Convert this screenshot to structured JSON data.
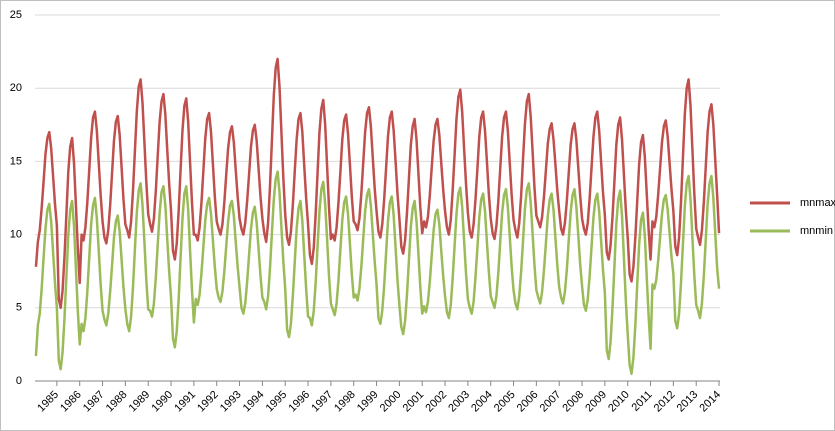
{
  "chart_data": {
    "type": "line",
    "categories": [
      null,
      null,
      null,
      null,
      null,
      null,
      null,
      null,
      null,
      null,
      null,
      "1985",
      null,
      null,
      null,
      null,
      null,
      null,
      null,
      null,
      null,
      null,
      null,
      "1986",
      null,
      null,
      null,
      null,
      null,
      null,
      null,
      null,
      null,
      null,
      null,
      "1987",
      null,
      null,
      null,
      null,
      null,
      null,
      null,
      null,
      null,
      null,
      null,
      "1988",
      null,
      null,
      null,
      null,
      null,
      null,
      null,
      null,
      null,
      null,
      null,
      "1989",
      null,
      null,
      null,
      null,
      null,
      null,
      null,
      null,
      null,
      null,
      null,
      "1990",
      null,
      null,
      null,
      null,
      null,
      null,
      null,
      null,
      null,
      null,
      null,
      "1991",
      null,
      null,
      null,
      null,
      null,
      null,
      null,
      null,
      null,
      null,
      null,
      "1992",
      null,
      null,
      null,
      null,
      null,
      null,
      null,
      null,
      null,
      null,
      null,
      "1993",
      null,
      null,
      null,
      null,
      null,
      null,
      null,
      null,
      null,
      null,
      null,
      "1994",
      null,
      null,
      null,
      null,
      null,
      null,
      null,
      null,
      null,
      null,
      null,
      "1995",
      null,
      null,
      null,
      null,
      null,
      null,
      null,
      null,
      null,
      null,
      null,
      "1996",
      null,
      null,
      null,
      null,
      null,
      null,
      null,
      null,
      null,
      null,
      null,
      "1997",
      null,
      null,
      null,
      null,
      null,
      null,
      null,
      null,
      null,
      null,
      null,
      "1998",
      null,
      null,
      null,
      null,
      null,
      null,
      null,
      null,
      null,
      null,
      null,
      "1999",
      null,
      null,
      null,
      null,
      null,
      null,
      null,
      null,
      null,
      null,
      null,
      "2000",
      null,
      null,
      null,
      null,
      null,
      null,
      null,
      null,
      null,
      null,
      null,
      "2001",
      null,
      null,
      null,
      null,
      null,
      null,
      null,
      null,
      null,
      null,
      null,
      "2002",
      null,
      null,
      null,
      null,
      null,
      null,
      null,
      null,
      null,
      null,
      null,
      "2003",
      null,
      null,
      null,
      null,
      null,
      null,
      null,
      null,
      null,
      null,
      null,
      "2004",
      null,
      null,
      null,
      null,
      null,
      null,
      null,
      null,
      null,
      null,
      null,
      "2005",
      null,
      null,
      null,
      null,
      null,
      null,
      null,
      null,
      null,
      null,
      null,
      "2006",
      null,
      null,
      null,
      null,
      null,
      null,
      null,
      null,
      null,
      null,
      null,
      "2007",
      null,
      null,
      null,
      null,
      null,
      null,
      null,
      null,
      null,
      null,
      null,
      "2008",
      null,
      null,
      null,
      null,
      null,
      null,
      null,
      null,
      null,
      null,
      null,
      "2009",
      null,
      null,
      null,
      null,
      null,
      null,
      null,
      null,
      null,
      null,
      null,
      "2010",
      null,
      null,
      null,
      null,
      null,
      null,
      null,
      null,
      null,
      null,
      null,
      "2011",
      null,
      null,
      null,
      null,
      null,
      null,
      null,
      null,
      null,
      null,
      null,
      "2012",
      null,
      null,
      null,
      null,
      null,
      null,
      null,
      null,
      null,
      null,
      null,
      "2013",
      null,
      null,
      null,
      null,
      null,
      null,
      null,
      null,
      null,
      null,
      null,
      "2014"
    ],
    "series": [
      {
        "name": "mnmax",
        "color": "#c0504d",
        "values": [
          7.8,
          9.5,
          10.3,
          11.8,
          13.6,
          15.5,
          16.6,
          17.0,
          15.9,
          14.0,
          12.1,
          10.6,
          5.6,
          5.0,
          6.2,
          8.5,
          11.4,
          14.3,
          16.0,
          16.6,
          14.9,
          12.0,
          9.1,
          6.7,
          10.0,
          9.6,
          10.5,
          12.2,
          14.4,
          16.6,
          18.0,
          18.4,
          17.1,
          14.9,
          12.7,
          10.9,
          9.8,
          9.4,
          10.3,
          12.0,
          14.2,
          16.4,
          17.7,
          18.1,
          16.8,
          14.6,
          12.4,
          10.7,
          10.3,
          9.8,
          10.9,
          13.0,
          15.7,
          18.4,
          20.1,
          20.6,
          19.0,
          16.3,
          13.6,
          11.4,
          10.7,
          10.2,
          11.1,
          13.0,
          15.4,
          17.7,
          19.1,
          19.6,
          18.2,
          15.8,
          13.5,
          11.6,
          8.9,
          8.3,
          9.4,
          11.6,
          14.4,
          17.1,
          18.8,
          19.3,
          17.7,
          14.9,
          12.2,
          10.0,
          10.0,
          9.6,
          10.5,
          12.2,
          14.4,
          16.6,
          17.9,
          18.3,
          17.0,
          14.8,
          12.6,
          10.9,
          10.4,
          10.0,
          10.7,
          12.2,
          14.1,
          15.9,
          17.0,
          17.4,
          16.3,
          14.4,
          12.6,
          11.1,
          10.4,
          10.0,
          10.8,
          12.3,
          14.1,
          16.0,
          17.1,
          17.5,
          16.4,
          14.5,
          12.6,
          11.1,
          10.1,
          9.5,
          10.8,
          13.3,
          16.4,
          19.5,
          21.4,
          22.0,
          20.1,
          17.0,
          13.9,
          11.4,
          9.8,
          9.3,
          10.2,
          12.0,
          14.3,
          16.5,
          17.9,
          18.3,
          17.0,
          14.7,
          12.5,
          10.7,
          8.6,
          8.0,
          9.1,
          11.4,
          14.2,
          17.0,
          18.6,
          19.2,
          17.5,
          14.7,
          11.9,
          9.7,
          10.0,
          9.6,
          10.5,
          12.2,
          14.3,
          16.5,
          17.8,
          18.2,
          16.9,
          14.8,
          12.6,
          10.9,
          10.7,
          10.3,
          11.1,
          12.8,
          14.9,
          17.0,
          18.3,
          18.7,
          17.4,
          15.3,
          13.2,
          11.6,
          10.2,
          9.8,
          10.7,
          12.4,
          14.5,
          16.7,
          18.0,
          18.4,
          17.1,
          15.0,
          12.8,
          11.1,
          9.2,
          8.7,
          9.6,
          11.5,
          13.8,
          16.1,
          17.4,
          17.9,
          16.5,
          14.2,
          11.9,
          10.1,
          10.9,
          10.5,
          11.2,
          12.7,
          14.6,
          16.4,
          17.5,
          17.9,
          16.8,
          14.9,
          13.1,
          11.6,
          10.5,
          10.0,
          11.0,
          13.0,
          15.4,
          17.9,
          19.4,
          19.9,
          18.4,
          15.9,
          13.5,
          11.5,
          10.2,
          9.8,
          10.7,
          12.4,
          14.5,
          16.7,
          18.0,
          18.4,
          17.1,
          15.0,
          12.8,
          11.1,
          10.1,
          9.7,
          10.6,
          12.3,
          14.5,
          16.7,
          18.0,
          18.4,
          17.1,
          14.9,
          12.7,
          11.0,
          10.3,
          9.8,
          10.8,
          12.7,
          15.2,
          17.6,
          19.1,
          19.6,
          18.1,
          15.7,
          13.2,
          11.3,
          10.9,
          10.5,
          11.2,
          12.6,
          14.4,
          16.2,
          17.2,
          17.6,
          16.5,
          14.8,
          13.0,
          11.6,
          10.4,
          10.0,
          10.8,
          12.3,
          14.2,
          16.1,
          17.2,
          17.6,
          16.5,
          14.6,
          12.7,
          11.1,
          10.4,
          10.0,
          10.8,
          12.5,
          14.6,
          16.7,
          18.0,
          18.4,
          17.1,
          15.0,
          12.9,
          11.3,
          8.8,
          8.3,
          9.3,
          11.2,
          13.6,
          16.1,
          17.5,
          18.0,
          16.5,
          14.1,
          11.7,
          9.8,
          7.3,
          6.8,
          7.8,
          9.8,
          12.3,
          14.8,
          16.3,
          16.8,
          15.3,
          12.8,
          10.3,
          8.3,
          10.9,
          10.5,
          11.2,
          12.7,
          14.5,
          16.3,
          17.4,
          17.8,
          16.7,
          14.9,
          13.1,
          11.6,
          9.2,
          8.6,
          9.8,
          12.2,
          15.2,
          18.2,
          20.0,
          20.6,
          18.8,
          15.8,
          12.8,
          10.4,
          9.8,
          9.3,
          10.3,
          12.2,
          14.6,
          17.0,
          18.4,
          18.9,
          17.5,
          15.1,
          12.7,
          10.1
        ]
      },
      {
        "name": "mnmin",
        "color": "#9bbb59",
        "values": [
          1.7,
          3.8,
          4.6,
          6.3,
          8.4,
          10.4,
          11.7,
          12.1,
          10.9,
          8.8,
          6.7,
          5.0,
          1.4,
          0.8,
          2.0,
          4.3,
          7.1,
          10.0,
          11.7,
          12.3,
          10.6,
          7.7,
          4.8,
          2.5,
          3.9,
          3.4,
          4.3,
          6.1,
          8.4,
          10.7,
          12.0,
          12.5,
          11.1,
          8.9,
          6.6,
          4.8,
          4.2,
          3.8,
          4.6,
          6.1,
          7.9,
          9.8,
          10.9,
          11.3,
          10.2,
          8.3,
          6.4,
          4.9,
          3.9,
          3.4,
          4.4,
          6.4,
          9.0,
          11.5,
          13.0,
          13.5,
          12.0,
          9.5,
          6.9,
          4.9,
          4.8,
          4.4,
          5.3,
          7.1,
          9.3,
          11.5,
          12.9,
          13.3,
          12.0,
          9.7,
          7.5,
          5.7,
          2.9,
          2.3,
          3.4,
          5.6,
          8.4,
          11.1,
          12.8,
          13.3,
          11.7,
          8.9,
          6.2,
          4.0,
          5.6,
          5.2,
          5.9,
          7.4,
          9.2,
          11.0,
          12.1,
          12.5,
          11.4,
          9.6,
          7.8,
          6.3,
          5.7,
          5.4,
          6.1,
          7.5,
          9.2,
          10.9,
          12.0,
          12.3,
          11.3,
          9.5,
          7.8,
          6.4,
          5.0,
          4.6,
          5.3,
          6.8,
          8.6,
          10.4,
          11.5,
          11.9,
          10.8,
          9.0,
          7.2,
          5.7,
          5.4,
          4.9,
          5.8,
          7.7,
          10.1,
          12.4,
          13.8,
          14.3,
          12.9,
          10.5,
          8.2,
          6.3,
          3.5,
          3.0,
          3.9,
          5.8,
          8.1,
          10.4,
          11.8,
          12.3,
          10.9,
          8.6,
          6.3,
          4.4,
          4.3,
          3.8,
          4.8,
          6.7,
          9.2,
          11.6,
          13.1,
          13.6,
          12.1,
          9.7,
          7.2,
          5.3,
          4.9,
          4.5,
          5.3,
          6.9,
          9.0,
          11.0,
          12.2,
          12.6,
          11.4,
          9.4,
          7.3,
          5.7,
          5.9,
          5.5,
          6.3,
          7.8,
          9.7,
          11.6,
          12.7,
          13.1,
          12.0,
          10.1,
          8.2,
          6.6,
          4.3,
          3.9,
          4.8,
          6.5,
          8.7,
          10.9,
          12.2,
          12.6,
          11.3,
          9.1,
          6.9,
          5.2,
          3.7,
          3.2,
          4.1,
          5.9,
          8.2,
          10.5,
          11.8,
          12.3,
          10.9,
          8.7,
          6.4,
          4.6,
          5.1,
          4.7,
          5.4,
          6.8,
          8.6,
          10.3,
          11.4,
          11.7,
          10.7,
          8.9,
          7.2,
          5.8,
          4.7,
          4.3,
          5.2,
          7.0,
          9.2,
          11.4,
          12.8,
          13.2,
          11.9,
          9.6,
          7.4,
          5.6,
          5.0,
          4.6,
          5.4,
          7.1,
          9.1,
          11.2,
          12.4,
          12.8,
          11.6,
          9.5,
          7.5,
          5.8,
          5.4,
          5.0,
          5.8,
          7.4,
          9.5,
          11.5,
          12.7,
          13.1,
          11.9,
          9.9,
          7.8,
          6.2,
          5.3,
          4.9,
          5.8,
          7.5,
          9.6,
          11.8,
          13.1,
          13.5,
          12.2,
          10.1,
          7.9,
          6.2,
          5.7,
          5.3,
          6.1,
          7.6,
          9.4,
          11.3,
          12.4,
          12.8,
          11.7,
          9.8,
          7.9,
          6.4,
          5.7,
          5.3,
          6.1,
          7.6,
          9.6,
          11.5,
          12.7,
          13.1,
          11.9,
          10.0,
          8.0,
          6.5,
          5.2,
          4.8,
          5.6,
          7.2,
          9.2,
          11.2,
          12.4,
          12.8,
          11.6,
          9.6,
          7.6,
          6.0,
          2.1,
          1.5,
          2.7,
          5.0,
          7.8,
          10.7,
          12.4,
          13.0,
          11.3,
          8.4,
          5.5,
          3.2,
          1.1,
          0.5,
          1.6,
          3.8,
          6.6,
          9.3,
          11.0,
          11.5,
          9.9,
          7.1,
          4.4,
          2.2,
          6.6,
          6.3,
          6.9,
          8.2,
          9.8,
          11.4,
          12.4,
          12.7,
          11.7,
          10.1,
          8.5,
          7.3,
          4.1,
          3.6,
          4.6,
          6.7,
          9.3,
          11.9,
          13.5,
          14.0,
          12.4,
          9.8,
          7.2,
          5.2,
          4.8,
          4.3,
          5.3,
          7.2,
          9.6,
          12.1,
          13.5,
          14.0,
          12.5,
          10.1,
          7.7,
          6.3
        ]
      }
    ],
    "ylim": [
      0,
      25
    ],
    "yticks": [
      0,
      5,
      10,
      15,
      20,
      25
    ],
    "grid": true,
    "legend": "right"
  }
}
